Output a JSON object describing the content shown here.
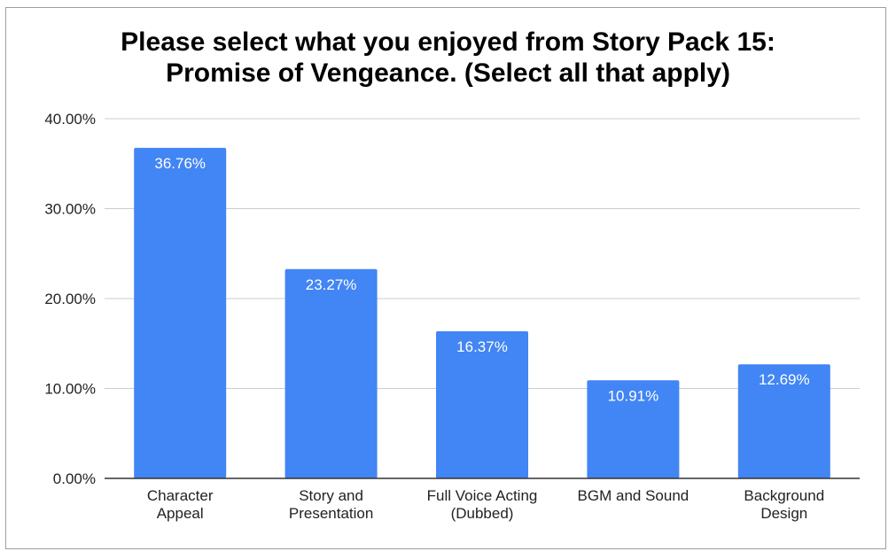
{
  "chart_data": {
    "type": "bar",
    "title_lines": [
      "Please select what you enjoyed from Story Pack 15:",
      "Promise of Vengeance. (Select all that apply)"
    ],
    "categories": [
      [
        "Character",
        "Appeal"
      ],
      [
        "Story and",
        "Presentation"
      ],
      [
        "Full Voice Acting",
        "(Dubbed)"
      ],
      [
        "BGM and Sound"
      ],
      [
        "Background",
        "Design"
      ]
    ],
    "values": [
      36.76,
      23.27,
      16.37,
      10.91,
      12.69
    ],
    "data_labels": [
      "36.76%",
      "23.27%",
      "16.37%",
      "10.91%",
      "12.69%"
    ],
    "y_ticks": [
      {
        "value": 0,
        "label": "0.00%"
      },
      {
        "value": 10,
        "label": "10.00%"
      },
      {
        "value": 20,
        "label": "20.00%"
      },
      {
        "value": 30,
        "label": "30.00%"
      },
      {
        "value": 40,
        "label": "40.00%"
      }
    ],
    "ylim": [
      0,
      40
    ],
    "grid": true,
    "legend": "none",
    "bar_color": "#4285f4",
    "grid_color": "#cccccc",
    "axis_color": "#333333"
  }
}
